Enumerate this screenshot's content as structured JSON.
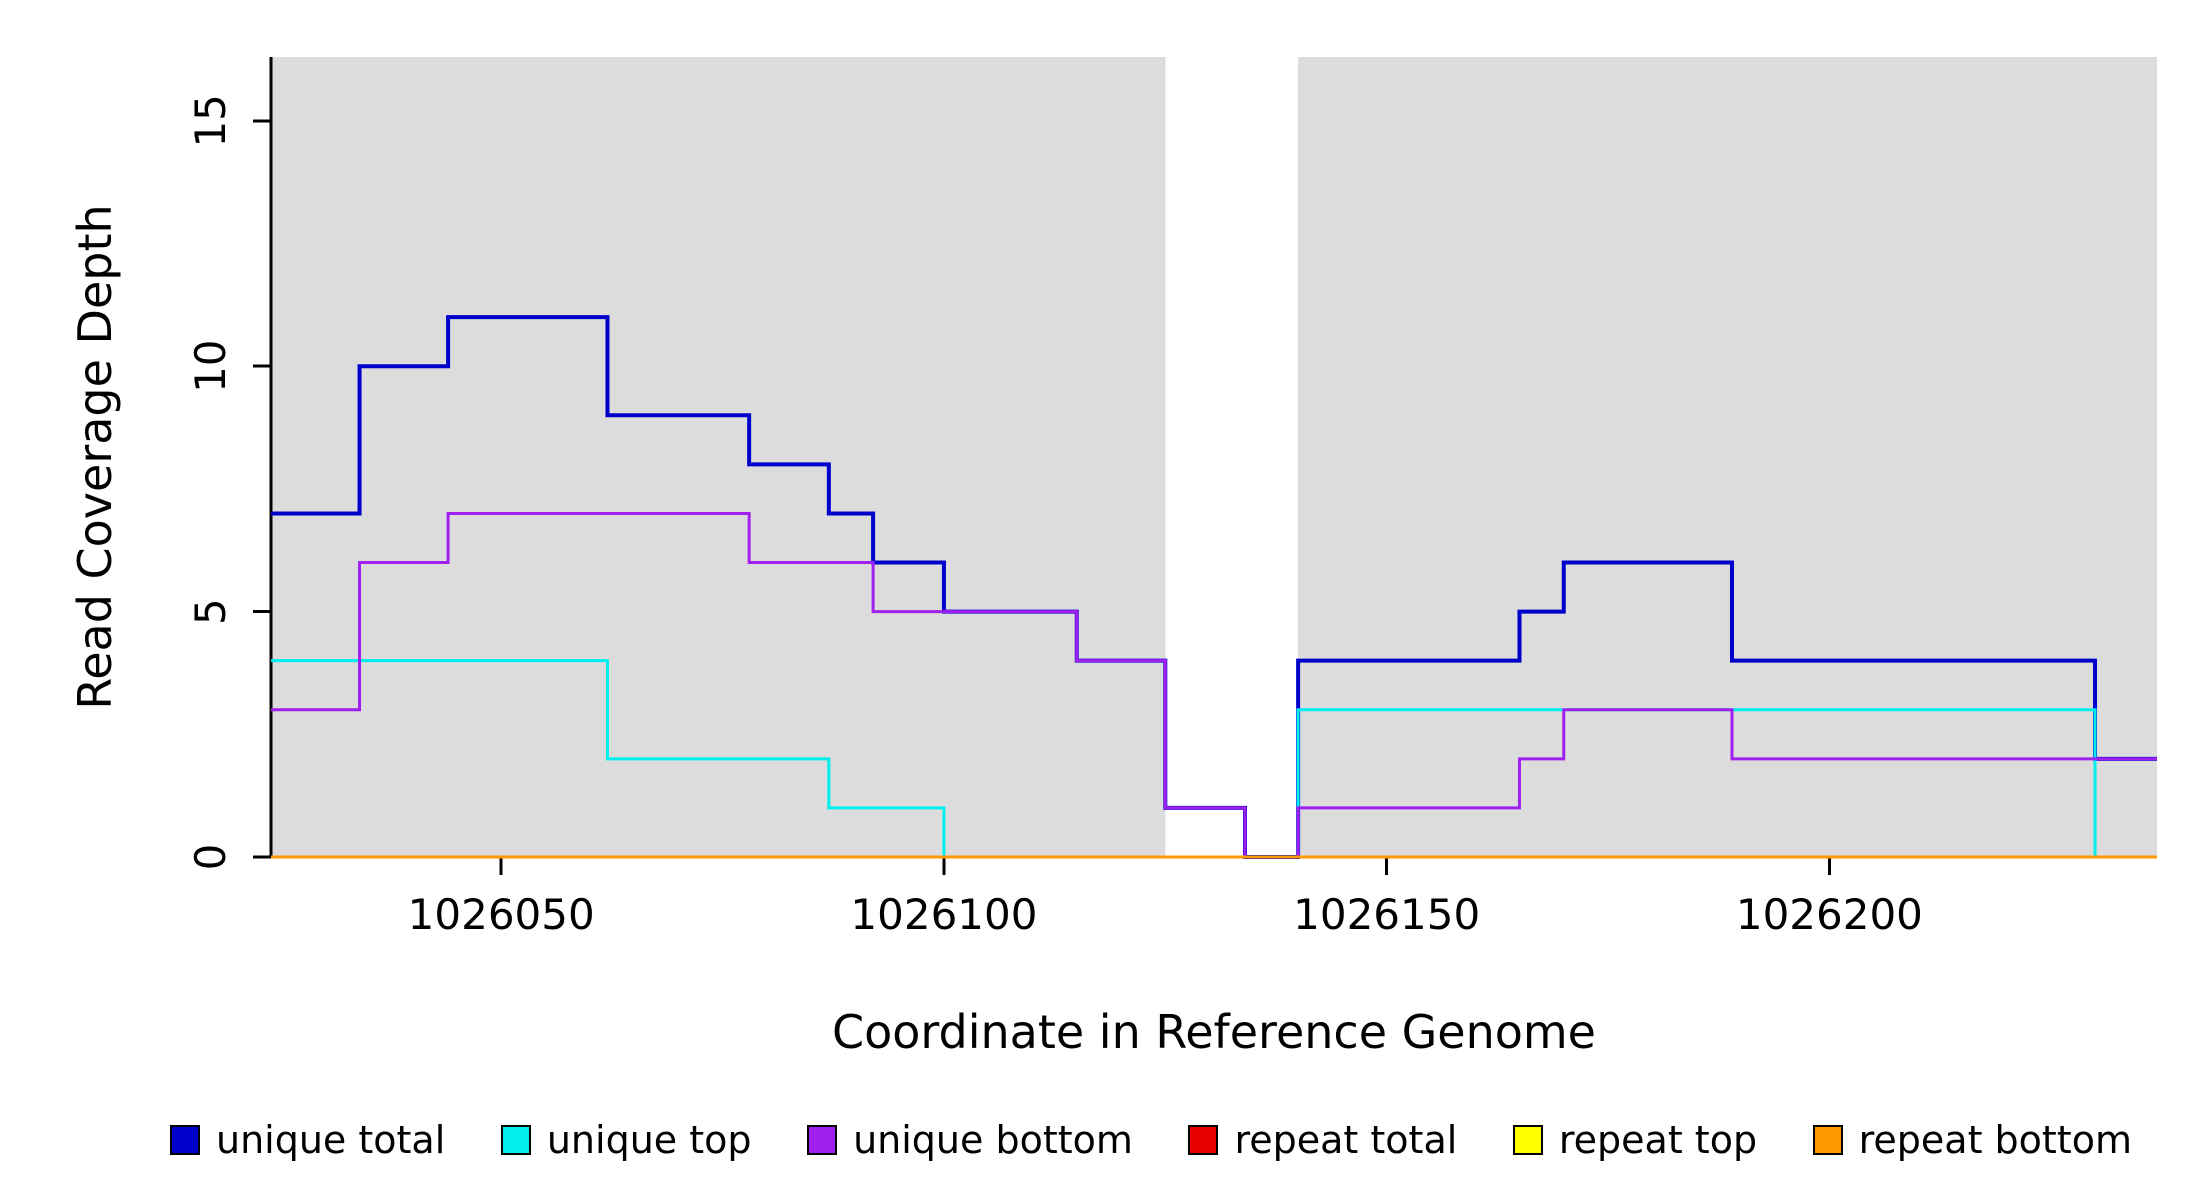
{
  "chart_data": {
    "type": "line",
    "step": "post",
    "title": "",
    "xlabel": "Coordinate in Reference Genome",
    "ylabel": "Read Coverage Depth",
    "xlim": [
      1026024,
      1026237
    ],
    "ylim": [
      0,
      16.3
    ],
    "xticks": [
      1026050,
      1026100,
      1026150,
      1026200
    ],
    "yticks": [
      0,
      5,
      10,
      15
    ],
    "grid": false,
    "legend_position": "bottom",
    "background_color": "#ffffff",
    "shaded_region_color": "#dcdcdc",
    "shaded_regions": [
      {
        "x0": 1026024,
        "x1": 1026125
      },
      {
        "x0": 1026140,
        "x1": 1026237
      }
    ],
    "x_end": 1026237,
    "series": [
      {
        "name": "unique total",
        "color": "#0000cd",
        "line_width": 4,
        "steps": [
          [
            1026024,
            7
          ],
          [
            1026034,
            10
          ],
          [
            1026044,
            11
          ],
          [
            1026062,
            9
          ],
          [
            1026078,
            8
          ],
          [
            1026087,
            7
          ],
          [
            1026092,
            6
          ],
          [
            1026100,
            5
          ],
          [
            1026115,
            4
          ],
          [
            1026125,
            1
          ],
          [
            1026134,
            0
          ],
          [
            1026140,
            4
          ],
          [
            1026165,
            5
          ],
          [
            1026170,
            6
          ],
          [
            1026189,
            4
          ],
          [
            1026230,
            2
          ]
        ]
      },
      {
        "name": "unique top",
        "color": "#00eeee",
        "line_width": 3,
        "steps": [
          [
            1026024,
            4
          ],
          [
            1026062,
            2
          ],
          [
            1026087,
            1
          ],
          [
            1026100,
            0
          ],
          [
            1026140,
            3
          ],
          [
            1026230,
            0
          ]
        ]
      },
      {
        "name": "unique bottom",
        "color": "#a020f0",
        "line_width": 3,
        "steps": [
          [
            1026024,
            3
          ],
          [
            1026034,
            6
          ],
          [
            1026044,
            7
          ],
          [
            1026078,
            6
          ],
          [
            1026092,
            5
          ],
          [
            1026115,
            4
          ],
          [
            1026125,
            1
          ],
          [
            1026134,
            0
          ],
          [
            1026140,
            1
          ],
          [
            1026165,
            2
          ],
          [
            1026170,
            3
          ],
          [
            1026189,
            2
          ]
        ]
      },
      {
        "name": "repeat total",
        "color": "#e60000",
        "line_width": 3,
        "steps": [
          [
            1026024,
            0
          ]
        ]
      },
      {
        "name": "repeat top",
        "color": "#ffff00",
        "line_width": 3,
        "steps": [
          [
            1026024,
            0
          ]
        ]
      },
      {
        "name": "repeat bottom",
        "color": "#ff9900",
        "line_width": 3,
        "steps": [
          [
            1026024,
            0
          ]
        ]
      }
    ]
  },
  "legend": {
    "items": [
      {
        "label": "unique total",
        "color": "#0000cd"
      },
      {
        "label": "unique top",
        "color": "#00eeee"
      },
      {
        "label": "unique bottom",
        "color": "#a020f0"
      },
      {
        "label": "repeat total",
        "color": "#e60000"
      },
      {
        "label": "repeat top",
        "color": "#ffff00"
      },
      {
        "label": "repeat bottom",
        "color": "#ff9900"
      }
    ]
  }
}
